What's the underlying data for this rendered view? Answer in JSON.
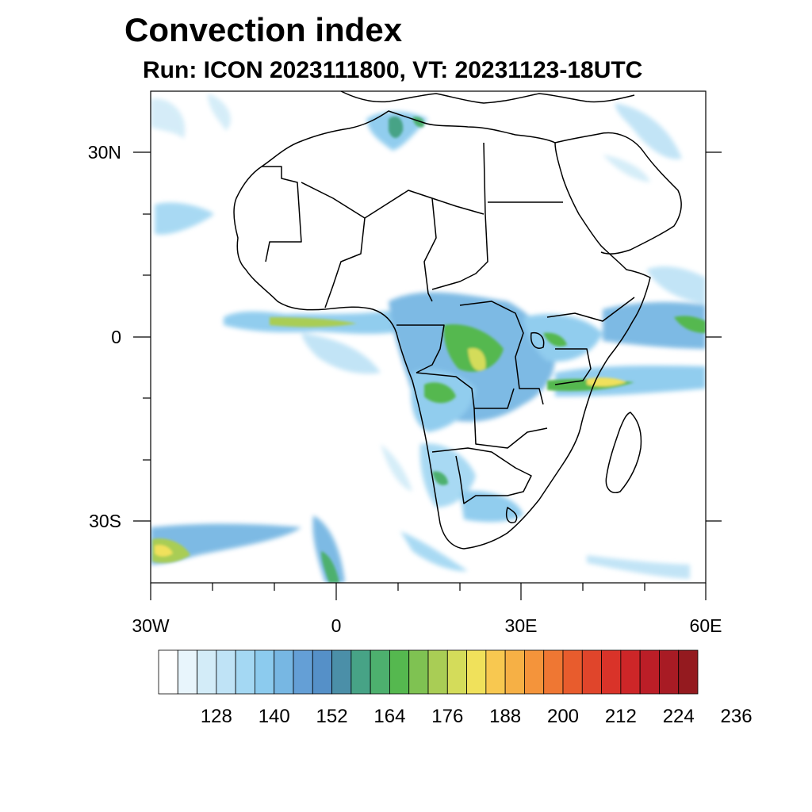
{
  "title": "Convection index",
  "subtitle": "Run: ICON 2023111800,  VT: 20231123-18UTC",
  "map": {
    "lon_range": [
      -30,
      60
    ],
    "lat_range": [
      -40,
      40
    ],
    "x_ticks": [
      {
        "value": -30,
        "label": "30W"
      },
      {
        "value": 0,
        "label": "0"
      },
      {
        "value": 30,
        "label": "30E"
      },
      {
        "value": 60,
        "label": "60E"
      }
    ],
    "y_ticks": [
      {
        "value": 30,
        "label": "30N"
      },
      {
        "value": 0,
        "label": "0"
      },
      {
        "value": -30,
        "label": "30S"
      }
    ],
    "coastline_color": "#000000",
    "background": "#ffffff"
  },
  "colorbar": {
    "colors": [
      "#ffffff",
      "#e8f5fc",
      "#d3ecf8",
      "#bfe3f6",
      "#a4d8f3",
      "#8ccbee",
      "#77b7e3",
      "#649fd6",
      "#5590c8",
      "#4b8fa8",
      "#47a386",
      "#4db06e",
      "#55b84f",
      "#7fc252",
      "#a9cd55",
      "#d4dc5a",
      "#f0e15b",
      "#f8c850",
      "#f6b045",
      "#f4943b",
      "#ef7733",
      "#e85c2d",
      "#e0452b",
      "#d93329",
      "#cd2628",
      "#bb1e27",
      "#a81b24",
      "#941a1f"
    ],
    "labels": [
      "128",
      "140",
      "152",
      "164",
      "176",
      "188",
      "200",
      "212",
      "224",
      "236"
    ]
  }
}
